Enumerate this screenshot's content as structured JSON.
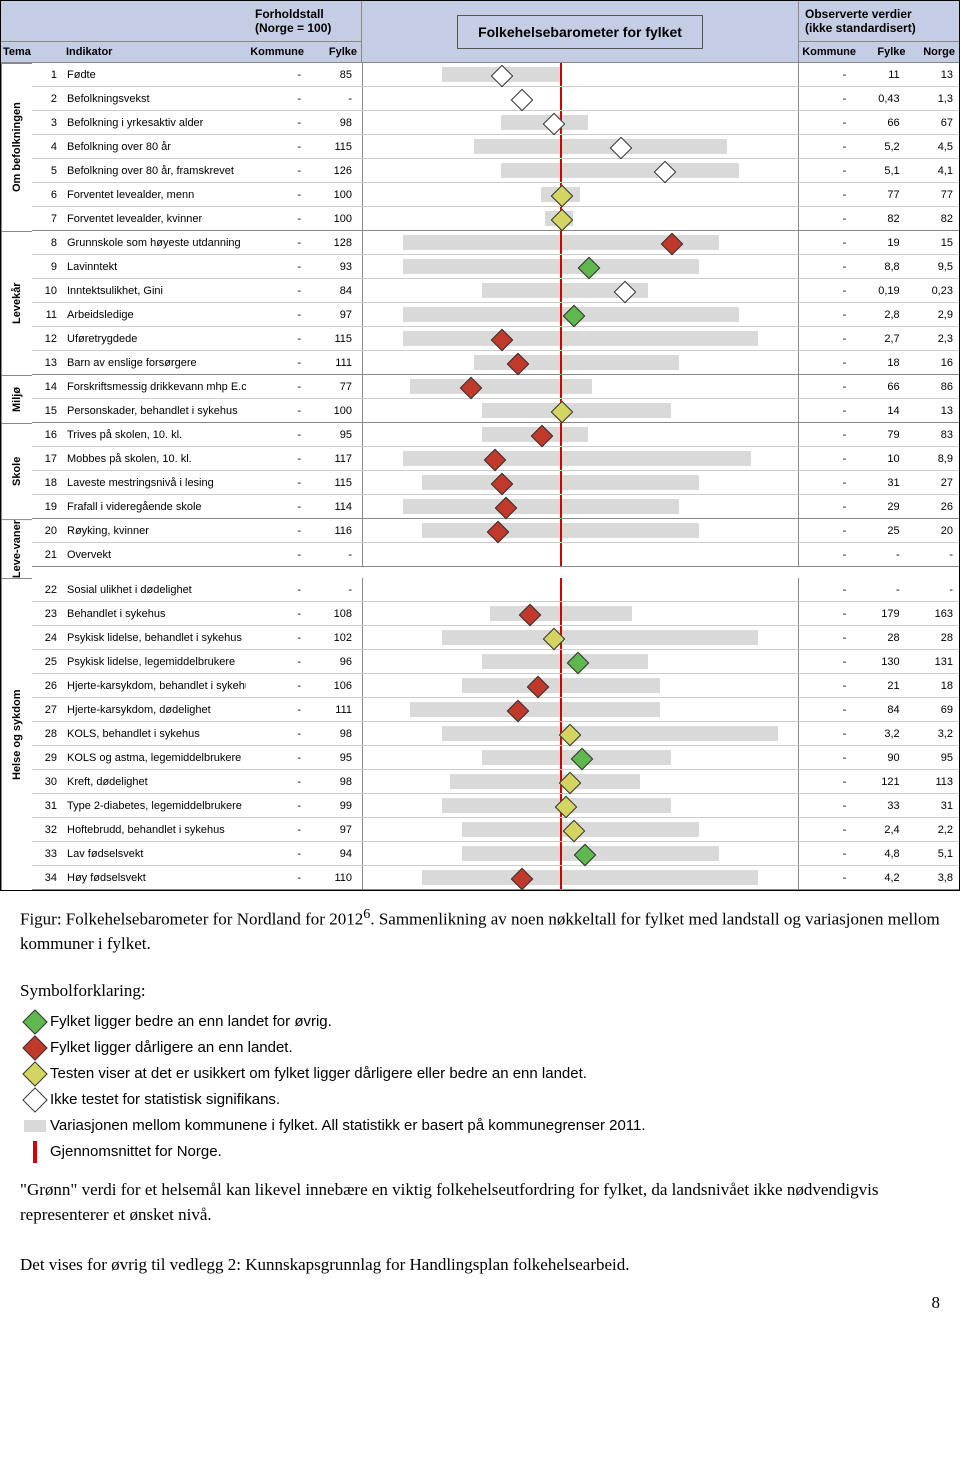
{
  "chart": {
    "header": {
      "tema": "Tema",
      "indikator": "Indikator",
      "ratio_title": "Forholdstall\n(Norge = 100)",
      "kommune": "Kommune",
      "fylke": "Fylke",
      "center_title": "Folkehelsebarometer for fylket",
      "obs_title": "Observerte verdier\n(ikke standardisert)",
      "r_kommune": "Kommune",
      "r_fylke": "Fylke",
      "r_norge": "Norge"
    },
    "scale": {
      "min": 50,
      "max": 160,
      "center": 100
    },
    "colors": {
      "bar": "#d9d9d9",
      "centerline": "#d40000",
      "green": "#5fb84e",
      "red": "#c0392b",
      "yellow": "#d4d462",
      "white": "#ffffff",
      "header_bg": "#c5cde4"
    },
    "groups": [
      {
        "name": "Om befolkningen",
        "rows": [
          {
            "n": 1,
            "ind": "Fødte",
            "kom": "-",
            "fyl": "85",
            "bar": [
              70,
              100
            ],
            "m": {
              "v": 85,
              "c": "white"
            },
            "rk": "-",
            "rf": "11",
            "rn": "13"
          },
          {
            "n": 2,
            "ind": "Befolkningsvekst",
            "kom": "-",
            "fyl": "-",
            "bar": null,
            "m": {
              "v": 90,
              "c": "white"
            },
            "rk": "-",
            "rf": "0,43",
            "rn": "1,3"
          },
          {
            "n": 3,
            "ind": "Befolkning i yrkesaktiv alder",
            "kom": "-",
            "fyl": "98",
            "bar": [
              85,
              107
            ],
            "m": {
              "v": 98,
              "c": "white"
            },
            "rk": "-",
            "rf": "66",
            "rn": "67"
          },
          {
            "n": 4,
            "ind": "Befolkning over 80 år",
            "kom": "-",
            "fyl": "115",
            "bar": [
              78,
              142
            ],
            "m": {
              "v": 115,
              "c": "white"
            },
            "rk": "-",
            "rf": "5,2",
            "rn": "4,5"
          },
          {
            "n": 5,
            "ind": "Befolkning over 80 år, framskrevet",
            "kom": "-",
            "fyl": "126",
            "bar": [
              85,
              145
            ],
            "m": {
              "v": 126,
              "c": "white"
            },
            "rk": "-",
            "rf": "5,1",
            "rn": "4,1"
          },
          {
            "n": 6,
            "ind": "Forventet levealder, menn",
            "kom": "-",
            "fyl": "100",
            "bar": [
              95,
              105
            ],
            "m": {
              "v": 100,
              "c": "yellow"
            },
            "rk": "-",
            "rf": "77",
            "rn": "77"
          },
          {
            "n": 7,
            "ind": "Forventet levealder, kvinner",
            "kom": "-",
            "fyl": "100",
            "bar": [
              96,
              103
            ],
            "m": {
              "v": 100,
              "c": "yellow"
            },
            "rk": "-",
            "rf": "82",
            "rn": "82"
          }
        ]
      },
      {
        "name": "Levekår",
        "rows": [
          {
            "n": 8,
            "ind": "Grunnskole som høyeste utdanning",
            "kom": "-",
            "fyl": "128",
            "bar": [
              60,
              140
            ],
            "m": {
              "v": 128,
              "c": "red"
            },
            "rk": "-",
            "rf": "19",
            "rn": "15"
          },
          {
            "n": 9,
            "ind": "Lavinntekt",
            "kom": "-",
            "fyl": "93",
            "bar": [
              60,
              135
            ],
            "m": {
              "v": 107,
              "c": "green"
            },
            "rk": "-",
            "rf": "8,8",
            "rn": "9,5"
          },
          {
            "n": 10,
            "ind": "Inntektsulikhet, Gini",
            "kom": "-",
            "fyl": "84",
            "bar": [
              80,
              122
            ],
            "m": {
              "v": 116,
              "c": "white"
            },
            "rk": "-",
            "rf": "0,19",
            "rn": "0,23"
          },
          {
            "n": 11,
            "ind": "Arbeidsledige",
            "kom": "-",
            "fyl": "97",
            "bar": [
              60,
              145
            ],
            "m": {
              "v": 103,
              "c": "green"
            },
            "rk": "-",
            "rf": "2,8",
            "rn": "2,9"
          },
          {
            "n": 12,
            "ind": "Uføretrygdede",
            "kom": "-",
            "fyl": "115",
            "bar": [
              60,
              150
            ],
            "m": {
              "v": 85,
              "c": "red"
            },
            "rk": "-",
            "rf": "2,7",
            "rn": "2,3"
          },
          {
            "n": 13,
            "ind": "Barn av enslige forsørgere",
            "kom": "-",
            "fyl": "111",
            "bar": [
              78,
              130
            ],
            "m": {
              "v": 89,
              "c": "red"
            },
            "rk": "-",
            "rf": "18",
            "rn": "16"
          }
        ]
      },
      {
        "name": "Miljø",
        "rows": [
          {
            "n": 14,
            "ind": "Forskriftsmessig drikkevann mhp E.coli",
            "kom": "-",
            "fyl": "77",
            "bar": [
              62,
              108
            ],
            "m": {
              "v": 77,
              "c": "red"
            },
            "rk": "-",
            "rf": "66",
            "rn": "86"
          },
          {
            "n": 15,
            "ind": "Personskader, behandlet i sykehus",
            "kom": "-",
            "fyl": "100",
            "bar": [
              80,
              128
            ],
            "m": {
              "v": 100,
              "c": "yellow"
            },
            "rk": "-",
            "rf": "14",
            "rn": "13"
          }
        ]
      },
      {
        "name": "Skole",
        "rows": [
          {
            "n": 16,
            "ind": "Trives på skolen, 10. kl.",
            "kom": "-",
            "fyl": "95",
            "bar": [
              80,
              107
            ],
            "m": {
              "v": 95,
              "c": "red"
            },
            "rk": "-",
            "rf": "79",
            "rn": "83"
          },
          {
            "n": 17,
            "ind": "Mobbes på skolen, 10. kl.",
            "kom": "-",
            "fyl": "117",
            "bar": [
              60,
              148
            ],
            "m": {
              "v": 83,
              "c": "red"
            },
            "rk": "-",
            "rf": "10",
            "rn": "8,9"
          },
          {
            "n": 18,
            "ind": "Laveste mestringsnivå i lesing",
            "kom": "-",
            "fyl": "115",
            "bar": [
              65,
              135
            ],
            "m": {
              "v": 85,
              "c": "red"
            },
            "rk": "-",
            "rf": "31",
            "rn": "27"
          },
          {
            "n": 19,
            "ind": "Frafall i videregående skole",
            "kom": "-",
            "fyl": "114",
            "bar": [
              60,
              130
            ],
            "m": {
              "v": 86,
              "c": "red"
            },
            "rk": "-",
            "rf": "29",
            "rn": "26"
          }
        ]
      },
      {
        "name": "Leve-vaner",
        "rows": [
          {
            "n": 20,
            "ind": "Røyking, kvinner",
            "kom": "-",
            "fyl": "116",
            "bar": [
              65,
              135
            ],
            "m": {
              "v": 84,
              "c": "red"
            },
            "rk": "-",
            "rf": "25",
            "rn": "20"
          },
          {
            "n": 21,
            "ind": "Overvekt",
            "kom": "-",
            "fyl": "-",
            "bar": null,
            "m": null,
            "rk": "-",
            "rf": "-",
            "rn": "-"
          }
        ]
      },
      {
        "name": "Helse og sykdom",
        "rows": [
          {
            "n": 22,
            "ind": "Sosial ulikhet i dødelighet",
            "kom": "-",
            "fyl": "-",
            "bar": null,
            "m": null,
            "rk": "-",
            "rf": "-",
            "rn": "-"
          },
          {
            "n": 23,
            "ind": "Behandlet i sykehus",
            "kom": "-",
            "fyl": "108",
            "bar": [
              82,
              118
            ],
            "m": {
              "v": 92,
              "c": "red"
            },
            "rk": "-",
            "rf": "179",
            "rn": "163"
          },
          {
            "n": 24,
            "ind": "Psykisk lidelse, behandlet i sykehus",
            "kom": "-",
            "fyl": "102",
            "bar": [
              70,
              150
            ],
            "m": {
              "v": 98,
              "c": "yellow"
            },
            "rk": "-",
            "rf": "28",
            "rn": "28"
          },
          {
            "n": 25,
            "ind": "Psykisk lidelse, legemiddelbrukere",
            "kom": "-",
            "fyl": "96",
            "bar": [
              80,
              122
            ],
            "m": {
              "v": 104,
              "c": "green"
            },
            "rk": "-",
            "rf": "130",
            "rn": "131"
          },
          {
            "n": 26,
            "ind": "Hjerte-karsykdom, behandlet i sykehus",
            "kom": "-",
            "fyl": "106",
            "bar": [
              75,
              125
            ],
            "m": {
              "v": 94,
              "c": "red"
            },
            "rk": "-",
            "rf": "21",
            "rn": "18"
          },
          {
            "n": 27,
            "ind": "Hjerte-karsykdom, dødelighet",
            "kom": "-",
            "fyl": "111",
            "bar": [
              62,
              125
            ],
            "m": {
              "v": 89,
              "c": "red"
            },
            "rk": "-",
            "rf": "84",
            "rn": "69"
          },
          {
            "n": 28,
            "ind": "KOLS, behandlet i sykehus",
            "kom": "-",
            "fyl": "98",
            "bar": [
              70,
              155
            ],
            "m": {
              "v": 102,
              "c": "yellow"
            },
            "rk": "-",
            "rf": "3,2",
            "rn": "3,2"
          },
          {
            "n": 29,
            "ind": "KOLS og astma, legemiddelbrukere",
            "kom": "-",
            "fyl": "95",
            "bar": [
              80,
              128
            ],
            "m": {
              "v": 105,
              "c": "green"
            },
            "rk": "-",
            "rf": "90",
            "rn": "95"
          },
          {
            "n": 30,
            "ind": "Kreft, dødelighet",
            "kom": "-",
            "fyl": "98",
            "bar": [
              72,
              120
            ],
            "m": {
              "v": 102,
              "c": "yellow"
            },
            "rk": "-",
            "rf": "121",
            "rn": "113"
          },
          {
            "n": 31,
            "ind": "Type 2-diabetes, legemiddelbrukere",
            "kom": "-",
            "fyl": "99",
            "bar": [
              70,
              128
            ],
            "m": {
              "v": 101,
              "c": "yellow"
            },
            "rk": "-",
            "rf": "33",
            "rn": "31"
          },
          {
            "n": 32,
            "ind": "Hoftebrudd, behandlet i sykehus",
            "kom": "-",
            "fyl": "97",
            "bar": [
              75,
              135
            ],
            "m": {
              "v": 103,
              "c": "yellow"
            },
            "rk": "-",
            "rf": "2,4",
            "rn": "2,2"
          },
          {
            "n": 33,
            "ind": "Lav fødselsvekt",
            "kom": "-",
            "fyl": "94",
            "bar": [
              75,
              140
            ],
            "m": {
              "v": 106,
              "c": "green"
            },
            "rk": "-",
            "rf": "4,8",
            "rn": "5,1"
          },
          {
            "n": 34,
            "ind": "Høy fødselsvekt",
            "kom": "-",
            "fyl": "110",
            "bar": [
              65,
              150
            ],
            "m": {
              "v": 90,
              "c": "red"
            },
            "rk": "-",
            "rf": "4,2",
            "rn": "3,8"
          }
        ]
      }
    ]
  },
  "caption": {
    "line1": "Figur: Folkehelsebarometer for Nordland for 2012",
    "sup": "6",
    "line2": ". Sammenlikning av noen nøkkeltall for fylket med landstall og variasjonen mellom kommuner i fylket.",
    "line3": "Symbolforklaring:"
  },
  "legend": [
    {
      "type": "diamond",
      "color": "#5fb84e",
      "text": "Fylket ligger bedre an enn landet for øvrig."
    },
    {
      "type": "diamond",
      "color": "#c0392b",
      "text": "Fylket ligger dårligere an enn landet."
    },
    {
      "type": "diamond",
      "color": "#d4d462",
      "text": "Testen viser at det er usikkert om fylket ligger dårligere eller bedre an enn landet."
    },
    {
      "type": "diamond",
      "color": "#ffffff",
      "text": "Ikke testet for statistisk signifikans."
    },
    {
      "type": "bar",
      "text": "Variasjonen mellom kommunene i fylket. All statistikk er basert på kommunegrenser 2011."
    },
    {
      "type": "line",
      "text": "Gjennomsnittet for Norge."
    }
  ],
  "para1": "\"Grønn\" verdi for et helsemål kan likevel innebære en viktig folkehelseutfordring for fylket, da landsnivået ikke nødvendigvis representerer et ønsket nivå.",
  "para2": "Det vises for øvrig til vedlegg 2: Kunnskapsgrunnlag for Handlingsplan folkehelsearbeid.",
  "pagenum": "8"
}
